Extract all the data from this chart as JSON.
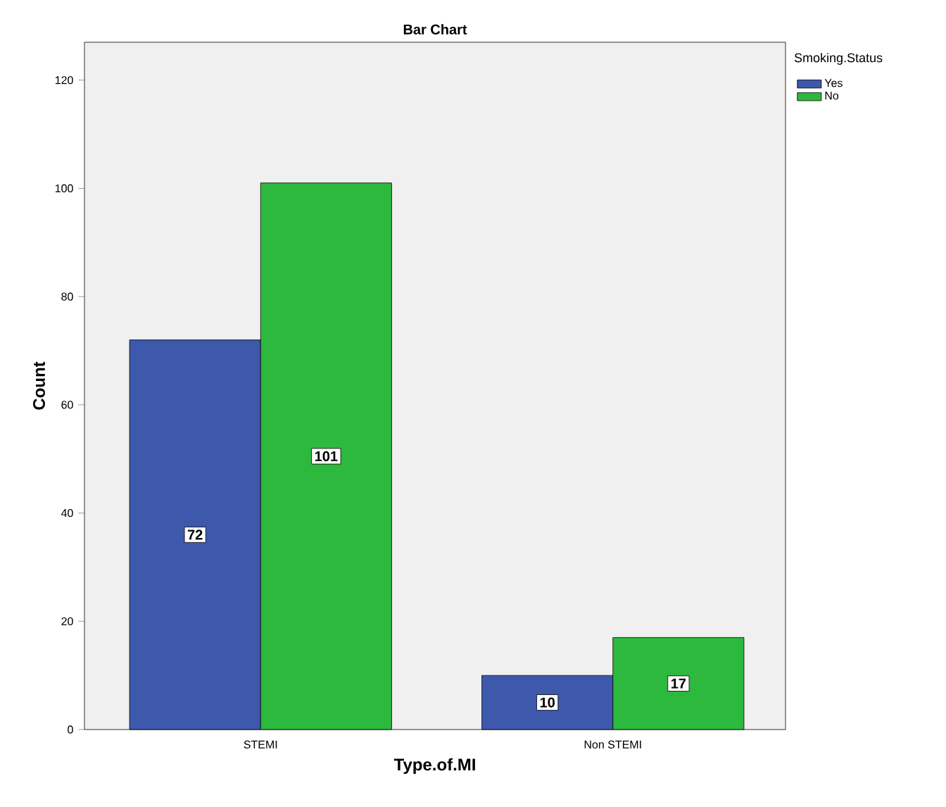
{
  "chart_data": {
    "type": "bar",
    "title": "Bar Chart",
    "xlabel": "Type.of.MI",
    "ylabel": "Count",
    "legend_title": "Smoking.Status",
    "categories": [
      "STEMI",
      "Non STEMI"
    ],
    "series": [
      {
        "name": "Yes",
        "color": "#3e58ac",
        "values": [
          72,
          10
        ]
      },
      {
        "name": "No",
        "color": "#2db83e",
        "values": [
          101,
          17
        ]
      }
    ],
    "ylim": [
      0,
      127
    ],
    "yticks": [
      0,
      20,
      40,
      60,
      80,
      100,
      120
    ],
    "data_labels": true,
    "legend": "top right",
    "grid": false
  }
}
